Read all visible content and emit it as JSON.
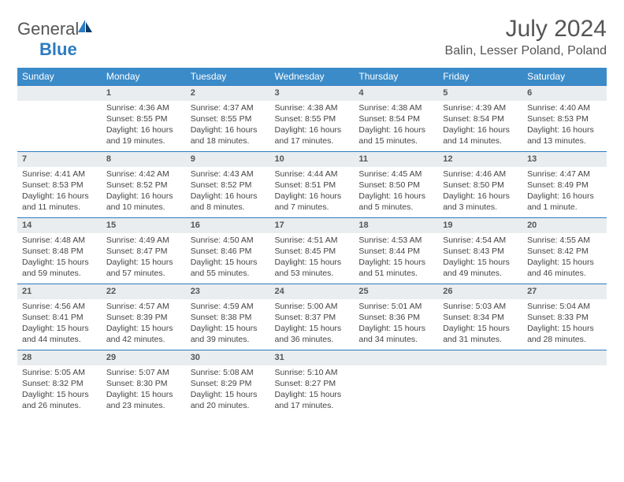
{
  "brand": {
    "part1": "General",
    "part2": "Blue"
  },
  "title": "July 2024",
  "location": "Balin, Lesser Poland, Poland",
  "colors": {
    "header_bg": "#3b8bc9",
    "header_text": "#ffffff",
    "daynum_bg": "#e9edef",
    "daynum_border": "#2d7bc0",
    "body_text": "#444444",
    "title_text": "#555555"
  },
  "daysOfWeek": [
    "Sunday",
    "Monday",
    "Tuesday",
    "Wednesday",
    "Thursday",
    "Friday",
    "Saturday"
  ],
  "startOffset": 1,
  "cells": [
    {
      "num": 1,
      "sunrise": "4:36 AM",
      "sunset": "8:55 PM",
      "daylight": "16 hours and 19 minutes."
    },
    {
      "num": 2,
      "sunrise": "4:37 AM",
      "sunset": "8:55 PM",
      "daylight": "16 hours and 18 minutes."
    },
    {
      "num": 3,
      "sunrise": "4:38 AM",
      "sunset": "8:55 PM",
      "daylight": "16 hours and 17 minutes."
    },
    {
      "num": 4,
      "sunrise": "4:38 AM",
      "sunset": "8:54 PM",
      "daylight": "16 hours and 15 minutes."
    },
    {
      "num": 5,
      "sunrise": "4:39 AM",
      "sunset": "8:54 PM",
      "daylight": "16 hours and 14 minutes."
    },
    {
      "num": 6,
      "sunrise": "4:40 AM",
      "sunset": "8:53 PM",
      "daylight": "16 hours and 13 minutes."
    },
    {
      "num": 7,
      "sunrise": "4:41 AM",
      "sunset": "8:53 PM",
      "daylight": "16 hours and 11 minutes."
    },
    {
      "num": 8,
      "sunrise": "4:42 AM",
      "sunset": "8:52 PM",
      "daylight": "16 hours and 10 minutes."
    },
    {
      "num": 9,
      "sunrise": "4:43 AM",
      "sunset": "8:52 PM",
      "daylight": "16 hours and 8 minutes."
    },
    {
      "num": 10,
      "sunrise": "4:44 AM",
      "sunset": "8:51 PM",
      "daylight": "16 hours and 7 minutes."
    },
    {
      "num": 11,
      "sunrise": "4:45 AM",
      "sunset": "8:50 PM",
      "daylight": "16 hours and 5 minutes."
    },
    {
      "num": 12,
      "sunrise": "4:46 AM",
      "sunset": "8:50 PM",
      "daylight": "16 hours and 3 minutes."
    },
    {
      "num": 13,
      "sunrise": "4:47 AM",
      "sunset": "8:49 PM",
      "daylight": "16 hours and 1 minute."
    },
    {
      "num": 14,
      "sunrise": "4:48 AM",
      "sunset": "8:48 PM",
      "daylight": "15 hours and 59 minutes."
    },
    {
      "num": 15,
      "sunrise": "4:49 AM",
      "sunset": "8:47 PM",
      "daylight": "15 hours and 57 minutes."
    },
    {
      "num": 16,
      "sunrise": "4:50 AM",
      "sunset": "8:46 PM",
      "daylight": "15 hours and 55 minutes."
    },
    {
      "num": 17,
      "sunrise": "4:51 AM",
      "sunset": "8:45 PM",
      "daylight": "15 hours and 53 minutes."
    },
    {
      "num": 18,
      "sunrise": "4:53 AM",
      "sunset": "8:44 PM",
      "daylight": "15 hours and 51 minutes."
    },
    {
      "num": 19,
      "sunrise": "4:54 AM",
      "sunset": "8:43 PM",
      "daylight": "15 hours and 49 minutes."
    },
    {
      "num": 20,
      "sunrise": "4:55 AM",
      "sunset": "8:42 PM",
      "daylight": "15 hours and 46 minutes."
    },
    {
      "num": 21,
      "sunrise": "4:56 AM",
      "sunset": "8:41 PM",
      "daylight": "15 hours and 44 minutes."
    },
    {
      "num": 22,
      "sunrise": "4:57 AM",
      "sunset": "8:39 PM",
      "daylight": "15 hours and 42 minutes."
    },
    {
      "num": 23,
      "sunrise": "4:59 AM",
      "sunset": "8:38 PM",
      "daylight": "15 hours and 39 minutes."
    },
    {
      "num": 24,
      "sunrise": "5:00 AM",
      "sunset": "8:37 PM",
      "daylight": "15 hours and 36 minutes."
    },
    {
      "num": 25,
      "sunrise": "5:01 AM",
      "sunset": "8:36 PM",
      "daylight": "15 hours and 34 minutes."
    },
    {
      "num": 26,
      "sunrise": "5:03 AM",
      "sunset": "8:34 PM",
      "daylight": "15 hours and 31 minutes."
    },
    {
      "num": 27,
      "sunrise": "5:04 AM",
      "sunset": "8:33 PM",
      "daylight": "15 hours and 28 minutes."
    },
    {
      "num": 28,
      "sunrise": "5:05 AM",
      "sunset": "8:32 PM",
      "daylight": "15 hours and 26 minutes."
    },
    {
      "num": 29,
      "sunrise": "5:07 AM",
      "sunset": "8:30 PM",
      "daylight": "15 hours and 23 minutes."
    },
    {
      "num": 30,
      "sunrise": "5:08 AM",
      "sunset": "8:29 PM",
      "daylight": "15 hours and 20 minutes."
    },
    {
      "num": 31,
      "sunrise": "5:10 AM",
      "sunset": "8:27 PM",
      "daylight": "15 hours and 17 minutes."
    }
  ],
  "labels": {
    "sunrise": "Sunrise:",
    "sunset": "Sunset:",
    "daylight": "Daylight:"
  }
}
